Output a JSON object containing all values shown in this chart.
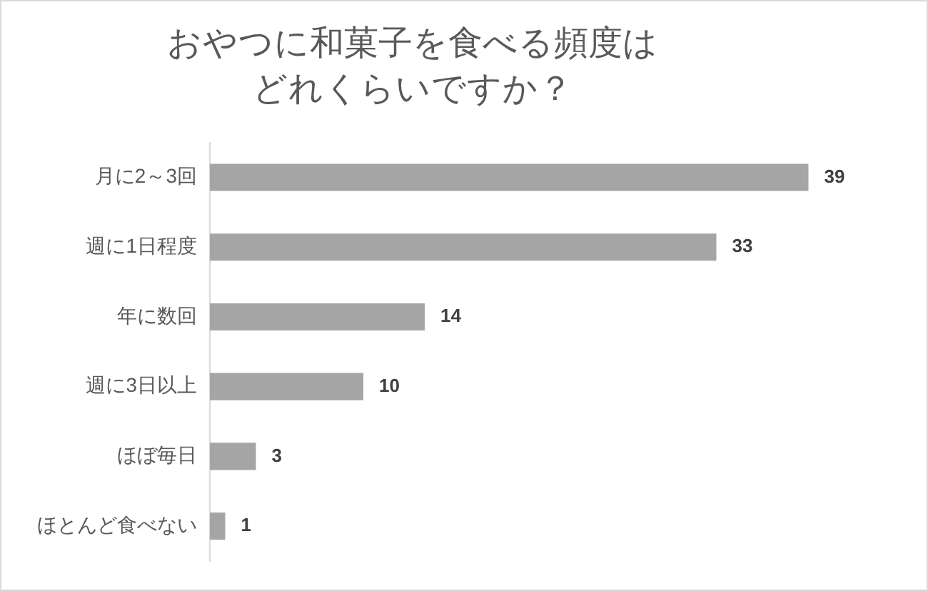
{
  "chart_data": {
    "type": "bar",
    "orientation": "horizontal",
    "title": "おやつに和菓子を食べる頻度はどれくらいですか？",
    "categories": [
      "月に2～3回",
      "週に1日程度",
      "年に数回",
      "週に3日以上",
      "ほぼ毎日",
      "ほとんど食べない"
    ],
    "values": [
      39,
      33,
      14,
      10,
      3,
      1
    ],
    "color": "#a5a5a5",
    "data_labels": true,
    "tick_labels": "y",
    "grid": false,
    "legend": false
  }
}
